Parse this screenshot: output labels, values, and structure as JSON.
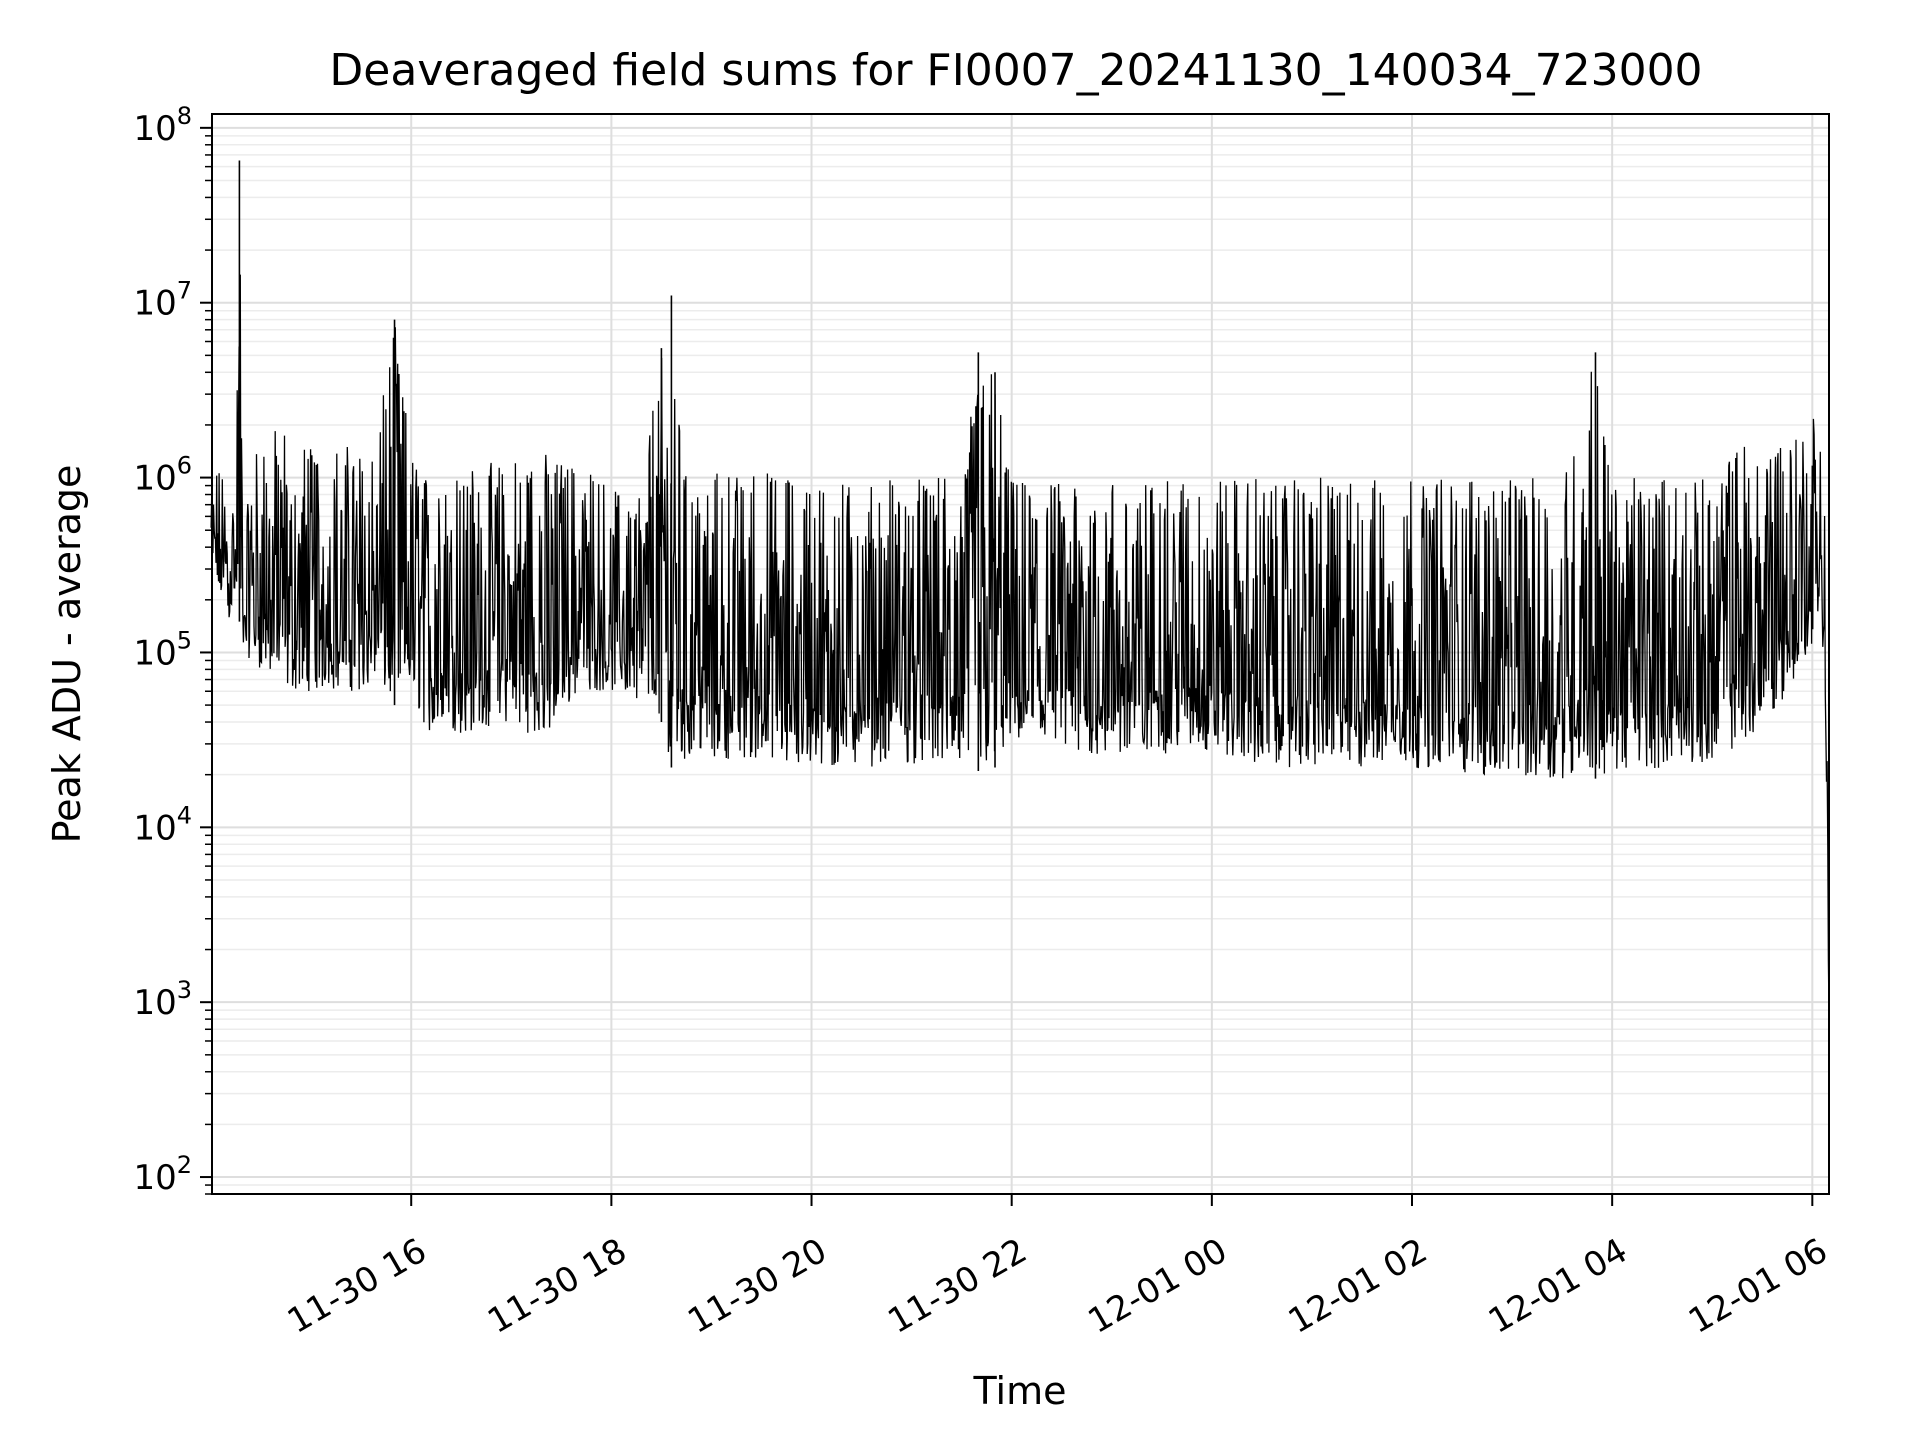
{
  "chart_data": {
    "type": "line",
    "title": "Deaveraged field sums for FI0007_20241130_140034_723000",
    "xlabel": "Time",
    "ylabel": "Peak ADU - average",
    "yscale": "log",
    "ylim": [
      80,
      120000000
    ],
    "xlim": [
      "2024-11-30 14:00:34",
      "2024-12-01 06:10:00"
    ],
    "grid": true,
    "line_color": "#000000",
    "x_ticks": [
      {
        "value": "2024-11-30 16:00",
        "label": "11-30 16"
      },
      {
        "value": "2024-11-30 18:00",
        "label": "11-30 18"
      },
      {
        "value": "2024-11-30 20:00",
        "label": "11-30 20"
      },
      {
        "value": "2024-11-30 22:00",
        "label": "11-30 22"
      },
      {
        "value": "2024-12-01 00:00",
        "label": "12-01 00"
      },
      {
        "value": "2024-12-01 02:00",
        "label": "12-01 02"
      },
      {
        "value": "2024-12-01 04:00",
        "label": "12-01 04"
      },
      {
        "value": "2024-12-01 06:00",
        "label": "12-01 06"
      }
    ],
    "y_ticks": [
      {
        "value": 100,
        "base": "10",
        "exp": "2"
      },
      {
        "value": 1000,
        "base": "10",
        "exp": "3"
      },
      {
        "value": 10000,
        "base": "10",
        "exp": "4"
      },
      {
        "value": 100000,
        "base": "10",
        "exp": "5"
      },
      {
        "value": 1000000,
        "base": "10",
        "exp": "6"
      },
      {
        "value": 10000000,
        "base": "10",
        "exp": "7"
      },
      {
        "value": 100000000,
        "base": "10",
        "exp": "8"
      }
    ],
    "series": [
      {
        "x": [
          "2024-11-30 14:00",
          "2024-11-30 14:10",
          "2024-11-30 14:15",
          "2024-11-30 14:17",
          "2024-11-30 14:19",
          "2024-11-30 14:30",
          "2024-11-30 14:45",
          "2024-11-30 15:00",
          "2024-11-30 15:20",
          "2024-11-30 15:40",
          "2024-11-30 15:50",
          "2024-11-30 16:00",
          "2024-11-30 16:10",
          "2024-11-30 16:20",
          "2024-11-30 16:40",
          "2024-11-30 17:00",
          "2024-11-30 17:20",
          "2024-11-30 17:40",
          "2024-11-30 18:00",
          "2024-11-30 18:15",
          "2024-11-30 18:30",
          "2024-11-30 18:36",
          "2024-11-30 18:45",
          "2024-11-30 19:00",
          "2024-11-30 19:30",
          "2024-11-30 20:00",
          "2024-11-30 20:30",
          "2024-11-30 21:00",
          "2024-11-30 21:30",
          "2024-11-30 21:40",
          "2024-11-30 21:50",
          "2024-11-30 22:00",
          "2024-11-30 22:30",
          "2024-11-30 23:00",
          "2024-11-30 23:30",
          "2024-12-01 00:00",
          "2024-12-01 00:30",
          "2024-12-01 01:00",
          "2024-12-01 01:30",
          "2024-12-01 02:00",
          "2024-12-01 02:30",
          "2024-12-01 03:00",
          "2024-12-01 03:30",
          "2024-12-01 03:50",
          "2024-12-01 04:00",
          "2024-12-01 04:30",
          "2024-12-01 05:00",
          "2024-12-01 05:20",
          "2024-12-01 05:40",
          "2024-12-01 06:00",
          "2024-12-01 06:05",
          "2024-12-01 06:08",
          "2024-12-01 06:10"
        ],
        "peak": [
          1000000,
          1200000,
          900000,
          65000000,
          1000000,
          1800000,
          2000000,
          1600000,
          1500000,
          1800000,
          8000000,
          1400000,
          1000000,
          1300000,
          1200000,
          1300000,
          1400000,
          1200000,
          900000,
          800000,
          5500000,
          11000000,
          1000000,
          1100000,
          1100000,
          1000000,
          1000000,
          1000000,
          1000000,
          5200000,
          4000000,
          950000,
          950000,
          950000,
          950000,
          1000000,
          1000000,
          1000000,
          1000000,
          1000000,
          1000000,
          1000000,
          1000000,
          5200000,
          1000000,
          1000000,
          1000000,
          1800000,
          1700000,
          2200000,
          2800000,
          700000,
          850
        ],
        "floor": [
          300000,
          150000,
          200000,
          150000,
          100000,
          80000,
          60000,
          60000,
          60000,
          60000,
          50000,
          55000,
          35000,
          33000,
          35000,
          40000,
          30000,
          60000,
          60000,
          55000,
          40000,
          22000,
          25000,
          25000,
          24000,
          20000,
          22000,
          23000,
          22000,
          21000,
          22000,
          30000,
          25000,
          25000,
          26000,
          27000,
          22000,
          22000,
          21000,
          22000,
          20000,
          19000,
          19000,
          19000,
          20000,
          22000,
          24000,
          30000,
          50000,
          100000,
          200000,
          30000,
          850
        ]
      }
    ]
  }
}
